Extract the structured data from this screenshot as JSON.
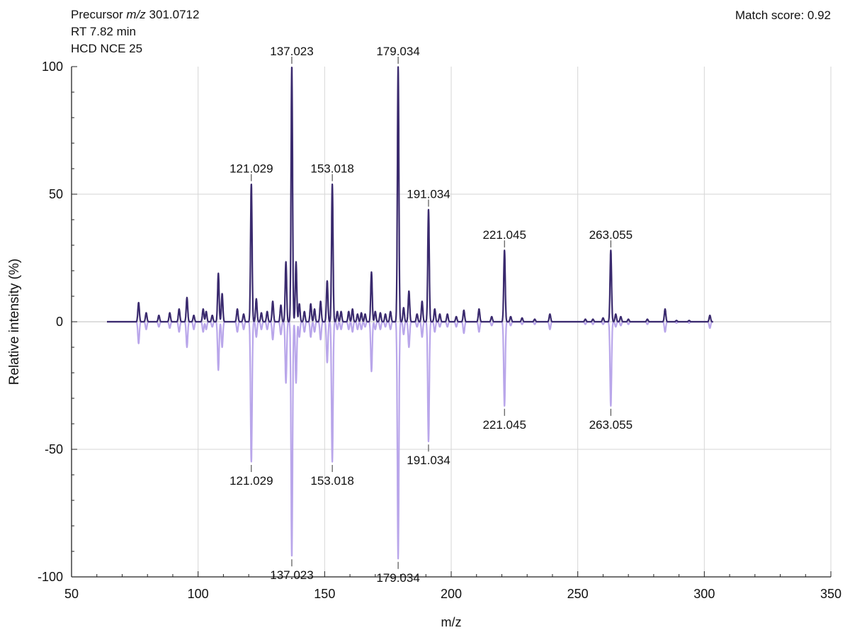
{
  "header": {
    "precursor_prefix": "Precursor ",
    "precursor_unit": "m/z",
    "precursor_value": " 301.0712",
    "rt": "RT 7.82 min",
    "hcd": "HCD NCE 25",
    "match_score": "Match score: 0.92"
  },
  "colors": {
    "experimental": "#3a2a6e",
    "reference": "#b9a6ea",
    "grid": "#d6d6d6",
    "axis": "#222222"
  },
  "chart_data": {
    "type": "line",
    "subtype": "mirror-mass-spectrum",
    "xlabel": "m/z",
    "ylabel": "Relative intensity (%)",
    "xlim": [
      50,
      350
    ],
    "ylim": [
      -100,
      100
    ],
    "xticks": [
      50,
      100,
      150,
      200,
      250,
      300,
      350
    ],
    "yticks": [
      100,
      50,
      0,
      -50,
      -100
    ],
    "grid": true,
    "series": [
      {
        "role": "experimental",
        "peaks": [
          [
            76.5,
            7.5
          ],
          [
            79.5,
            3.5
          ],
          [
            84.5,
            2.5
          ],
          [
            88.8,
            3.5
          ],
          [
            92.5,
            5
          ],
          [
            95.6,
            9.5
          ],
          [
            98.3,
            2.5
          ],
          [
            102,
            5
          ],
          [
            103.2,
            4
          ],
          [
            105.6,
            2.5
          ],
          [
            108,
            19
          ],
          [
            109.5,
            11
          ],
          [
            115.5,
            5
          ],
          [
            118,
            3
          ],
          [
            121.029,
            54
          ],
          [
            123,
            9
          ],
          [
            125,
            3.5
          ],
          [
            127.3,
            4
          ],
          [
            129.5,
            8
          ],
          [
            132.7,
            6.5
          ],
          [
            134.7,
            23.5
          ],
          [
            137.023,
            100
          ],
          [
            138.7,
            23.5
          ],
          [
            140,
            7
          ],
          [
            142,
            4
          ],
          [
            144.5,
            7
          ],
          [
            146,
            5
          ],
          [
            148.4,
            8
          ],
          [
            151,
            16
          ],
          [
            153.018,
            54
          ],
          [
            155,
            4
          ],
          [
            156.5,
            4
          ],
          [
            159.5,
            4
          ],
          [
            161,
            5
          ],
          [
            163,
            3
          ],
          [
            164.5,
            3.5
          ],
          [
            166,
            3
          ],
          [
            168.5,
            19.5
          ],
          [
            170,
            4
          ],
          [
            172,
            3.5
          ],
          [
            174,
            3
          ],
          [
            176,
            4
          ],
          [
            179.034,
            100
          ],
          [
            181.2,
            5.5
          ],
          [
            183.3,
            12
          ],
          [
            186.5,
            3
          ],
          [
            188.5,
            8
          ],
          [
            191.034,
            44
          ],
          [
            193.5,
            5
          ],
          [
            195.5,
            3
          ],
          [
            198.5,
            3
          ],
          [
            202,
            2
          ],
          [
            205,
            4.5
          ],
          [
            211,
            5
          ],
          [
            216,
            2
          ],
          [
            221.045,
            28
          ],
          [
            223.5,
            2
          ],
          [
            228,
            1.5
          ],
          [
            233,
            1
          ],
          [
            239,
            3
          ],
          [
            253,
            1
          ],
          [
            256,
            1
          ],
          [
            260,
            1.5
          ],
          [
            263.055,
            28
          ],
          [
            265,
            3
          ],
          [
            267,
            2
          ],
          [
            270,
            1
          ],
          [
            277.5,
            1
          ],
          [
            284.5,
            5
          ],
          [
            289,
            0.5
          ],
          [
            294,
            0.5
          ],
          [
            302.2,
            2.5
          ]
        ]
      },
      {
        "role": "reference",
        "peaks": [
          [
            76.5,
            8.5
          ],
          [
            79.5,
            3
          ],
          [
            84.5,
            2
          ],
          [
            88.8,
            2.5
          ],
          [
            92.5,
            4
          ],
          [
            95.6,
            10
          ],
          [
            98.3,
            3
          ],
          [
            102,
            4
          ],
          [
            103.2,
            3
          ],
          [
            105.6,
            2
          ],
          [
            108,
            19
          ],
          [
            109.5,
            10
          ],
          [
            115.5,
            4
          ],
          [
            118,
            3
          ],
          [
            121.029,
            55
          ],
          [
            123,
            6
          ],
          [
            125,
            3
          ],
          [
            127.3,
            3
          ],
          [
            129.5,
            7
          ],
          [
            132.7,
            5
          ],
          [
            134.7,
            24
          ],
          [
            137.023,
            92
          ],
          [
            138.7,
            24
          ],
          [
            140,
            6
          ],
          [
            142,
            4
          ],
          [
            144.5,
            6
          ],
          [
            146,
            4
          ],
          [
            148.4,
            7
          ],
          [
            151,
            16
          ],
          [
            153.018,
            55
          ],
          [
            155,
            3
          ],
          [
            156.5,
            3
          ],
          [
            159.5,
            3
          ],
          [
            161,
            4
          ],
          [
            163,
            3
          ],
          [
            164.5,
            3
          ],
          [
            166,
            2
          ],
          [
            168.5,
            19.5
          ],
          [
            170,
            3
          ],
          [
            172,
            3
          ],
          [
            174,
            2
          ],
          [
            176,
            3
          ],
          [
            179.034,
            93
          ],
          [
            181.2,
            5
          ],
          [
            183.3,
            10
          ],
          [
            186.5,
            2
          ],
          [
            188.5,
            6
          ],
          [
            191.034,
            47
          ],
          [
            193.5,
            4
          ],
          [
            195.5,
            2
          ],
          [
            198.5,
            2
          ],
          [
            202,
            2
          ],
          [
            205,
            4.5
          ],
          [
            211,
            4
          ],
          [
            216,
            1.5
          ],
          [
            221.045,
            33
          ],
          [
            223.5,
            1.5
          ],
          [
            228,
            1
          ],
          [
            233,
            1
          ],
          [
            239,
            3
          ],
          [
            253,
            1
          ],
          [
            256,
            1
          ],
          [
            260,
            1
          ],
          [
            263.055,
            33
          ],
          [
            265,
            2
          ],
          [
            267,
            1.5
          ],
          [
            270,
            1
          ],
          [
            277.5,
            1
          ],
          [
            284.5,
            4
          ],
          [
            289,
            0.5
          ],
          [
            294,
            0.5
          ],
          [
            302.2,
            2.5
          ]
        ]
      }
    ],
    "annotations": [
      {
        "label": "137.023",
        "x": 137.023,
        "y": 100,
        "side": "top"
      },
      {
        "label": "179.034",
        "x": 179.034,
        "y": 100,
        "side": "top"
      },
      {
        "label": "121.029",
        "x": 121.029,
        "y": 54,
        "side": "top"
      },
      {
        "label": "153.018",
        "x": 153.018,
        "y": 54,
        "side": "top"
      },
      {
        "label": "191.034",
        "x": 191.034,
        "y": 44,
        "side": "top"
      },
      {
        "label": "221.045",
        "x": 221.045,
        "y": 28,
        "side": "top"
      },
      {
        "label": "263.055",
        "x": 263.055,
        "y": 28,
        "side": "top"
      },
      {
        "label": "221.045",
        "x": 221.045,
        "y": -33,
        "side": "bottom"
      },
      {
        "label": "263.055",
        "x": 263.055,
        "y": -33,
        "side": "bottom"
      },
      {
        "label": "121.029",
        "x": 121.029,
        "y": -55,
        "side": "bottom"
      },
      {
        "label": "153.018",
        "x": 153.018,
        "y": -55,
        "side": "bottom"
      },
      {
        "label": "191.034",
        "x": 191.034,
        "y": -47,
        "side": "bottom"
      },
      {
        "label": "137.023",
        "x": 137.023,
        "y": -92,
        "side": "bottom"
      },
      {
        "label": "179.034",
        "x": 179.034,
        "y": -93,
        "side": "bottom"
      }
    ]
  }
}
